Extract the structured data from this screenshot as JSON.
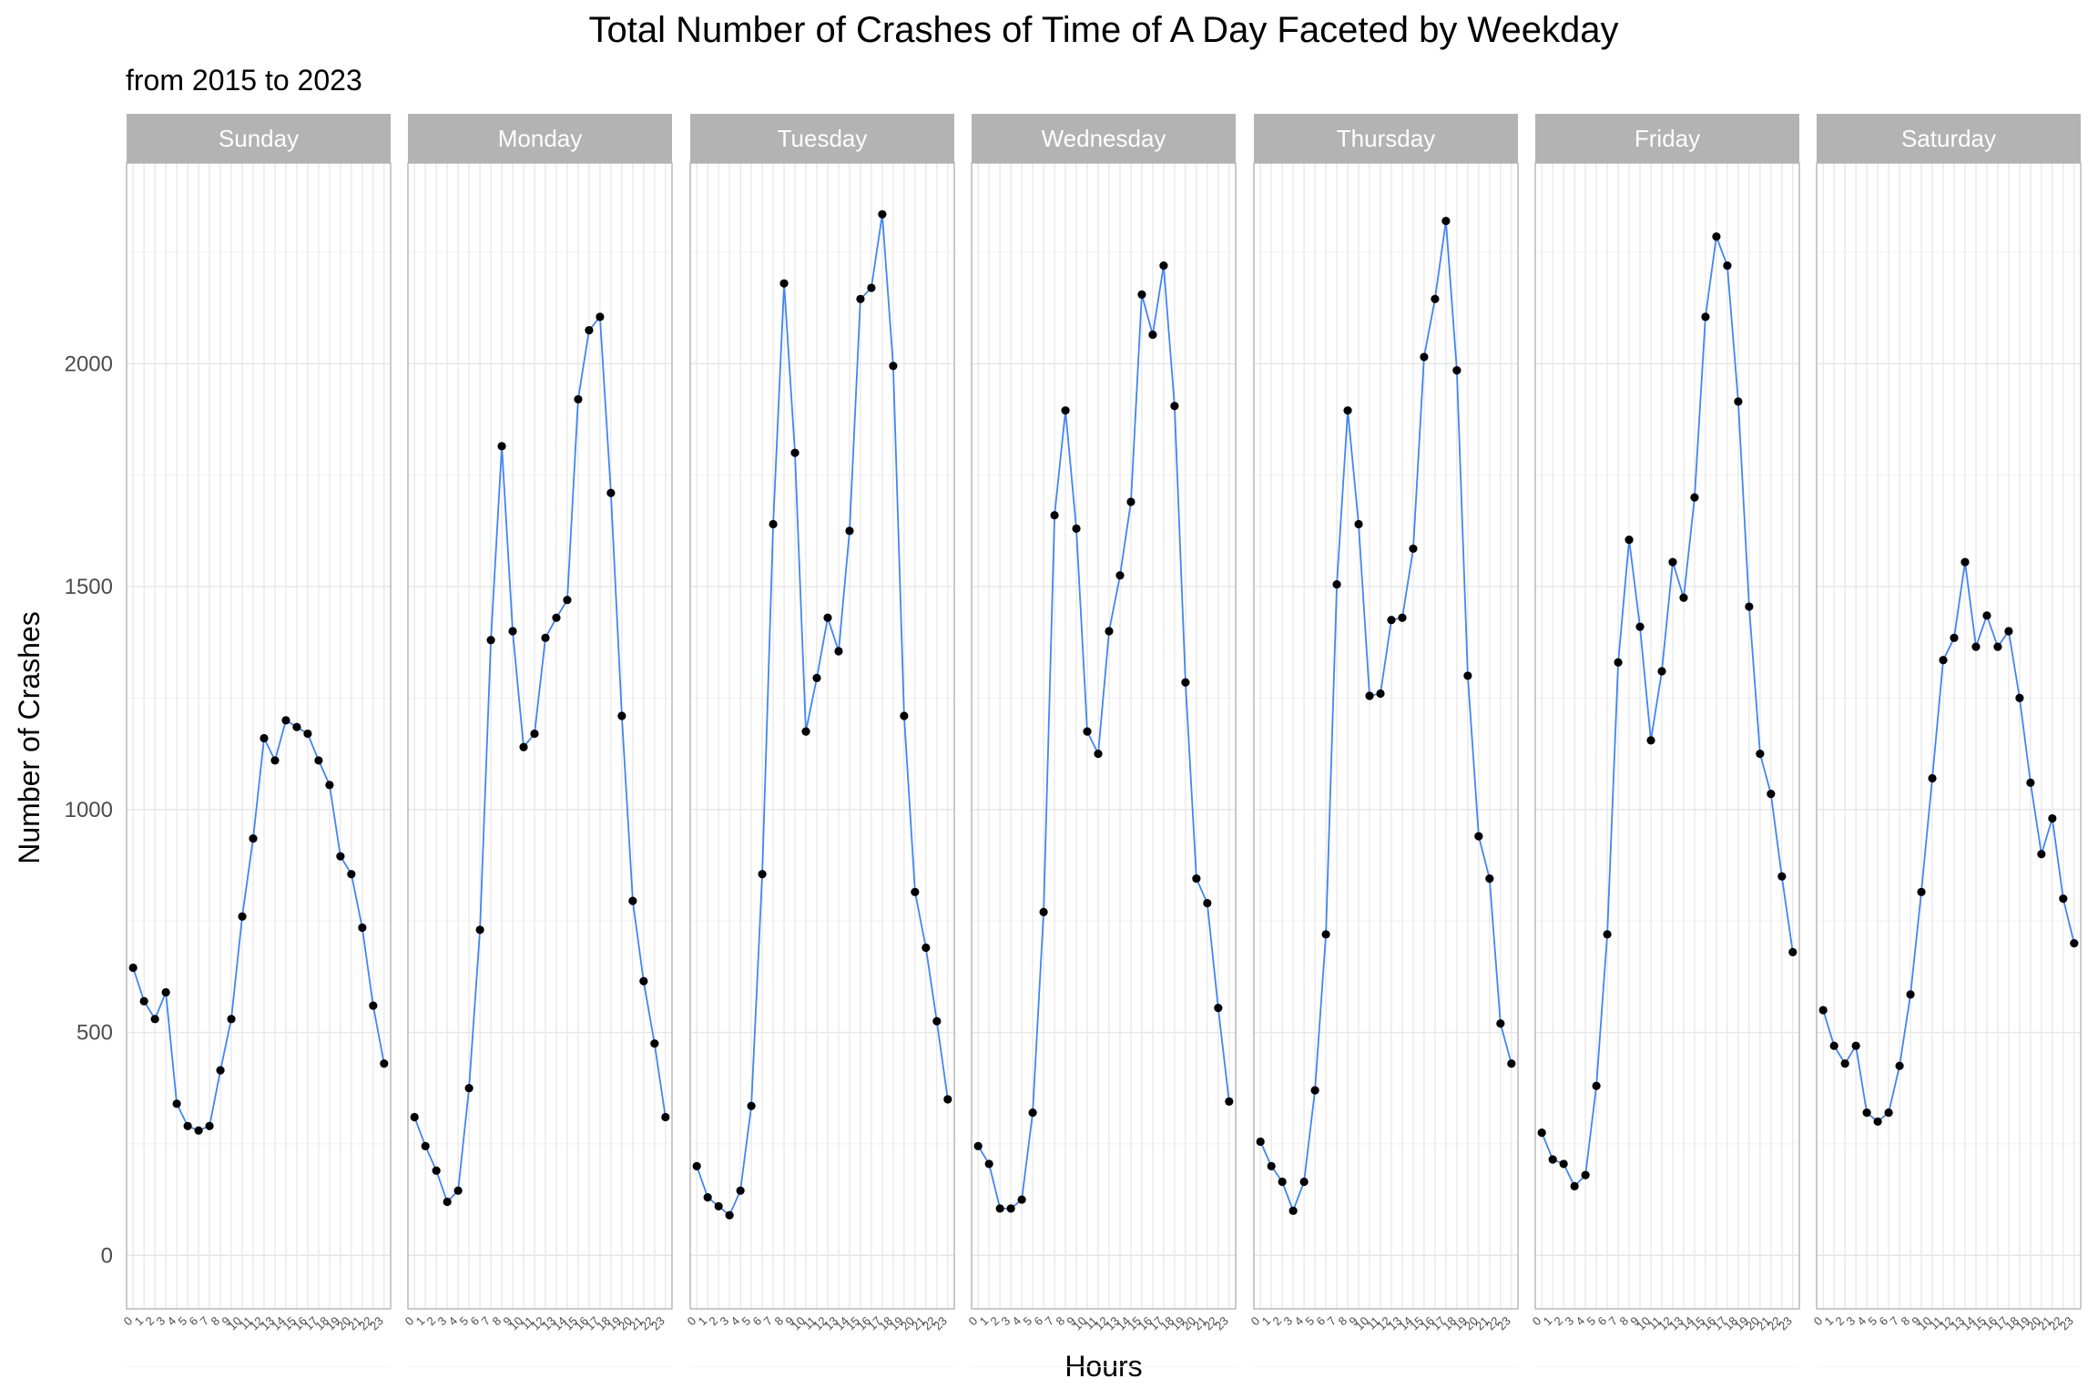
{
  "chart_data": {
    "type": "line",
    "title": "Total Number of Crashes of Time of A Day Faceted by Weekday",
    "subtitle": "from 2015 to 2023",
    "xlabel": "Hours",
    "ylabel": "Number of Crashes",
    "x": [
      "0",
      "1",
      "2",
      "3",
      "4",
      "5",
      "6",
      "7",
      "8",
      "9",
      "10",
      "11",
      "12",
      "13",
      "14",
      "15",
      "16",
      "17",
      "18",
      "19",
      "20",
      "21",
      "22",
      "23"
    ],
    "y_ticks": [
      0,
      500,
      1000,
      1500,
      2000
    ],
    "ylim": [
      -120,
      2450
    ],
    "grid": true,
    "facets": [
      {
        "name": "Sunday",
        "values": [
          645,
          570,
          530,
          590,
          340,
          290,
          280,
          290,
          415,
          530,
          760,
          935,
          1160,
          1110,
          1200,
          1185,
          1170,
          1110,
          1055,
          895,
          855,
          735,
          560,
          430
        ]
      },
      {
        "name": "Monday",
        "values": [
          310,
          245,
          190,
          120,
          145,
          375,
          730,
          1380,
          1815,
          1400,
          1140,
          1170,
          1385,
          1430,
          1470,
          1920,
          2075,
          2105,
          1710,
          1210,
          795,
          615,
          475,
          310
        ]
      },
      {
        "name": "Tuesday",
        "values": [
          200,
          130,
          110,
          90,
          145,
          335,
          855,
          1640,
          2180,
          1800,
          1175,
          1295,
          1430,
          1355,
          1625,
          2145,
          2170,
          2335,
          1995,
          1210,
          815,
          690,
          525,
          350
        ]
      },
      {
        "name": "Wednesday",
        "values": [
          245,
          205,
          105,
          105,
          125,
          320,
          770,
          1660,
          1895,
          1630,
          1175,
          1125,
          1400,
          1525,
          1690,
          2155,
          2065,
          2220,
          1905,
          1285,
          845,
          790,
          555,
          345
        ]
      },
      {
        "name": "Thursday",
        "values": [
          255,
          200,
          165,
          100,
          165,
          370,
          720,
          1505,
          1895,
          1640,
          1255,
          1260,
          1425,
          1430,
          1585,
          2015,
          2145,
          2320,
          1985,
          1300,
          940,
          845,
          520,
          430
        ]
      },
      {
        "name": "Friday",
        "values": [
          275,
          215,
          205,
          155,
          180,
          380,
          720,
          1330,
          1605,
          1410,
          1155,
          1310,
          1555,
          1475,
          1700,
          2105,
          2285,
          2220,
          1915,
          1455,
          1125,
          1035,
          850,
          680
        ]
      },
      {
        "name": "Saturday",
        "values": [
          550,
          470,
          430,
          470,
          320,
          300,
          320,
          425,
          585,
          815,
          1070,
          1335,
          1385,
          1555,
          1365,
          1435,
          1365,
          1400,
          1250,
          1060,
          900,
          980,
          800,
          700
        ]
      }
    ],
    "colors": {
      "line": "#4285f4",
      "point": "#000000",
      "strip_bg": "#b3b3b3",
      "strip_text": "#ffffff",
      "grid_major": "#e6e6e6",
      "grid_minor": "#f2f2f2",
      "panel_border": "#b3b3b3"
    }
  }
}
